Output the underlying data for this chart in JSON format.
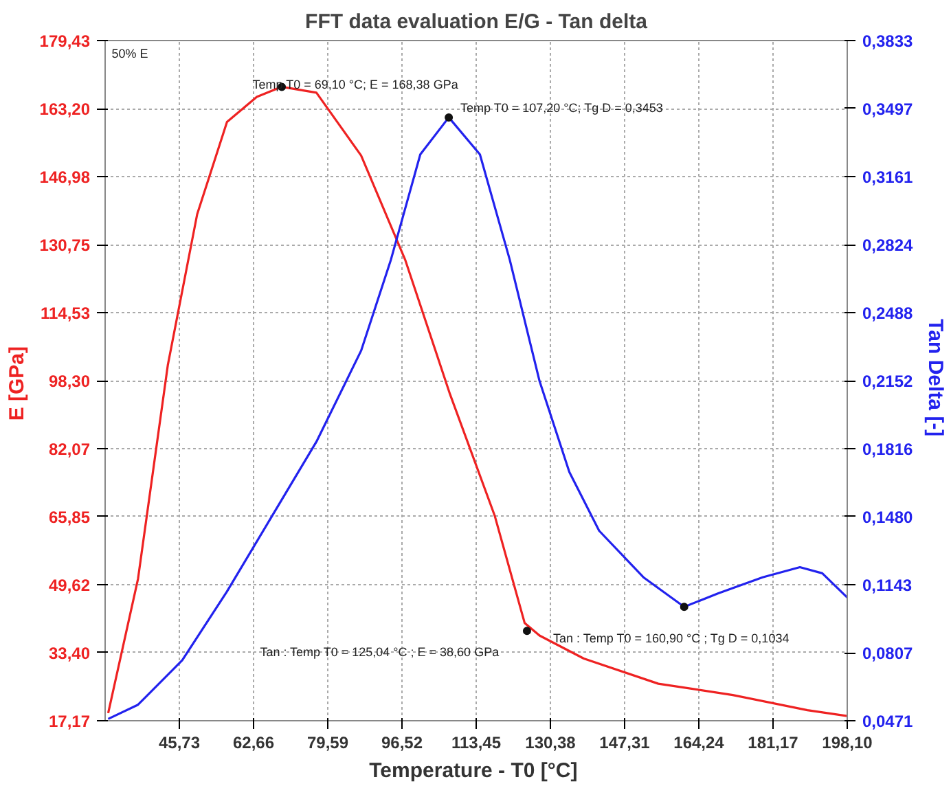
{
  "chart_data": {
    "type": "line",
    "title": "FFT data evaluation E/G - Tan delta",
    "xlabel": "Temperature - T0  [°C]",
    "ylabel": "E  [GPa]",
    "y2label": "Tan Delta  [-]",
    "annotations": [
      "50% E",
      "Temp T0 = 69,10 °C; E = 168,38 GPa",
      "Temp T0 = 107,20 °C; Tg D = 0,3453",
      "Tan : Temp T0 = 125,04 °C ; E = 38,60 GPa",
      "Tan : Temp T0 = 160,90 °C ; Tg D = 0,1034"
    ],
    "xlim": [
      28.8,
      198.1
    ],
    "ylim": [
      17.17,
      179.43
    ],
    "y2lim": [
      0.0471,
      0.3833
    ],
    "xticks": [
      {
        "value": 45.73,
        "label": "45,73"
      },
      {
        "value": 62.66,
        "label": "62,66"
      },
      {
        "value": 79.59,
        "label": "79,59"
      },
      {
        "value": 96.52,
        "label": "96,52"
      },
      {
        "value": 113.45,
        "label": "113,45"
      },
      {
        "value": 130.38,
        "label": "130,38"
      },
      {
        "value": 147.31,
        "label": "147,31"
      },
      {
        "value": 164.24,
        "label": "164,24"
      },
      {
        "value": 181.17,
        "label": "181,17"
      },
      {
        "value": 198.1,
        "label": "198,10"
      }
    ],
    "yticks": [
      {
        "value": 17.17,
        "label": "17,17"
      },
      {
        "value": 33.4,
        "label": "33,40"
      },
      {
        "value": 49.62,
        "label": "49,62"
      },
      {
        "value": 65.85,
        "label": "65,85"
      },
      {
        "value": 82.07,
        "label": "82,07"
      },
      {
        "value": 98.3,
        "label": "98,30"
      },
      {
        "value": 114.53,
        "label": "114,53"
      },
      {
        "value": 130.75,
        "label": "130,75"
      },
      {
        "value": 146.98,
        "label": "146,98"
      },
      {
        "value": 163.2,
        "label": "163,20"
      },
      {
        "value": 179.43,
        "label": "179,43"
      }
    ],
    "y2ticks": [
      {
        "value": 0.0471,
        "label": "0,0471"
      },
      {
        "value": 0.0807,
        "label": "0,0807"
      },
      {
        "value": 0.1143,
        "label": "0,1143"
      },
      {
        "value": 0.148,
        "label": "0,1480"
      },
      {
        "value": 0.1816,
        "label": "0,1816"
      },
      {
        "value": 0.2152,
        "label": "0,2152"
      },
      {
        "value": 0.2488,
        "label": "0,2488"
      },
      {
        "value": 0.2824,
        "label": "0,2824"
      },
      {
        "value": 0.3161,
        "label": "0,3161"
      },
      {
        "value": 0.3497,
        "label": "0,3497"
      },
      {
        "value": 0.3833,
        "label": "0,3833"
      }
    ],
    "grid": true,
    "line_style": "solid",
    "series": [
      {
        "color": "#ee2222",
        "x": [
          29.5,
          36.3,
          43.1,
          49.8,
          56.6,
          63.4,
          69.1,
          77.0,
          87.2,
          97.3,
          107.5,
          117.7,
          124.5,
          127.9,
          138.0,
          155.0,
          172.0,
          189.0,
          198.1
        ],
        "values": [
          19,
          51,
          102,
          138,
          160,
          166,
          168.4,
          167,
          152,
          127,
          95,
          66,
          40.5,
          37.5,
          32,
          26,
          23.3,
          19.7,
          18.3
        ]
      },
      {
        "color": "#2222ee",
        "axis": "y2",
        "x": [
          29.5,
          36.3,
          46.4,
          56.6,
          66.8,
          77.0,
          87.2,
          94.0,
          100.7,
          107.2,
          114.3,
          121.1,
          127.9,
          134.7,
          141.5,
          151.6,
          160.9,
          168.6,
          178.8,
          187.3,
          192.4,
          198.1
        ],
        "values": [
          0.048,
          0.055,
          0.077,
          0.111,
          0.148,
          0.185,
          0.23,
          0.275,
          0.327,
          0.3453,
          0.327,
          0.275,
          0.215,
          0.17,
          0.141,
          0.118,
          0.1034,
          0.11,
          0.118,
          0.123,
          0.12,
          0.108
        ]
      },
      {
        "type": "scatter",
        "marker": "circle",
        "color": "#111111",
        "x": [
          69.1,
          125.04
        ],
        "values": [
          168.38,
          38.6
        ]
      },
      {
        "type": "scatter",
        "marker": "circle",
        "color": "#111111",
        "axis": "y2",
        "x": [
          107.2,
          160.9
        ],
        "values": [
          0.3453,
          0.1034
        ]
      }
    ]
  }
}
